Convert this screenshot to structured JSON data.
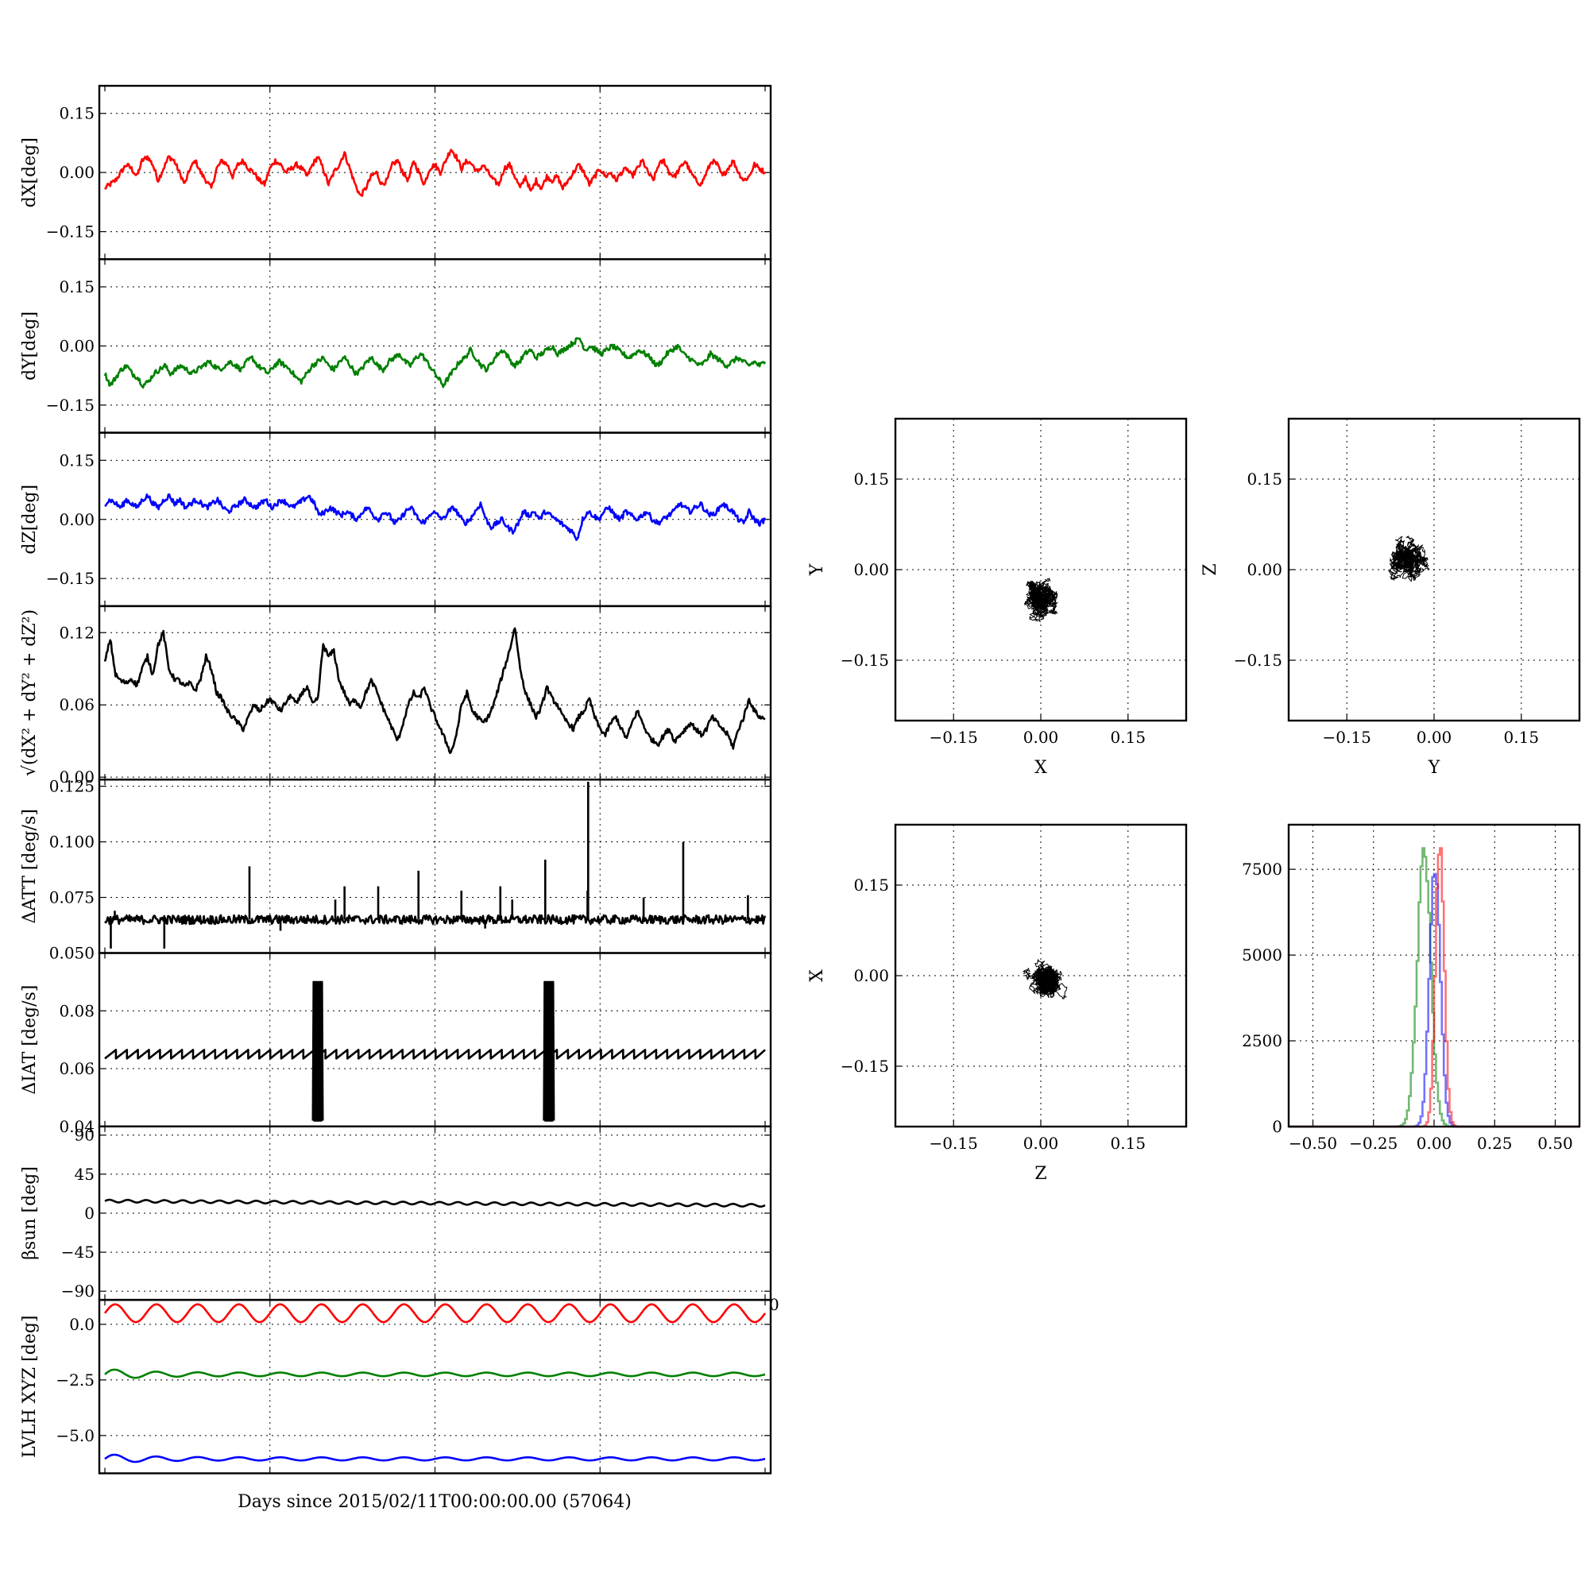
{
  "chart_data": [
    {
      "id": "dX",
      "type": "line",
      "ylabel": "dX[deg]",
      "ylim": [
        -0.22,
        0.22
      ],
      "yticks": [
        -0.15,
        0.0,
        0.15
      ],
      "ytick_labels": [
        "−0.15",
        "0.00",
        "0.15"
      ],
      "series": [
        {
          "color": "#ff0000",
          "y": [
            -0.04,
            -0.03,
            -0.02,
            0.0,
            0.02,
            0.01,
            -0.01,
            0.03,
            0.04,
            0.02,
            -0.02,
            0.01,
            0.04,
            0.03,
            0.0,
            -0.03,
            0.01,
            0.03,
            0.0,
            -0.02,
            -0.04,
            0.01,
            0.03,
            0.02,
            -0.01,
            0.02,
            0.03,
            0.01,
            0.0,
            -0.02,
            -0.03,
            0.01,
            0.03,
            0.02,
            0.0,
            0.01,
            0.02,
            0.01,
            -0.01,
            0.02,
            0.04,
            0.01,
            -0.03,
            0.0,
            0.02,
            0.05,
            0.01,
            -0.03,
            -0.06,
            -0.04,
            -0.01,
            0.0,
            -0.03,
            -0.02,
            0.02,
            0.03,
            0.0,
            -0.02,
            0.03,
            0.0,
            -0.03,
            0.01,
            0.02,
            0.0,
            0.03,
            0.06,
            0.04,
            0.01,
            0.03,
            0.02,
            0.0,
            0.02,
            0.0,
            -0.02,
            -0.03,
            0.01,
            0.02,
            -0.01,
            -0.04,
            -0.01,
            -0.05,
            -0.02,
            -0.04,
            -0.01,
            -0.02,
            -0.01,
            -0.04,
            -0.02,
            0.0,
            0.02,
            0.0,
            -0.03,
            -0.01,
            0.01,
            -0.01,
            0.0,
            -0.02,
            0.0,
            0.01,
            -0.01,
            0.01,
            0.03,
            0.0,
            -0.02,
            0.02,
            0.03,
            0.0,
            -0.01,
            0.01,
            0.03,
            0.0,
            -0.02,
            -0.03,
            0.0,
            0.03,
            0.02,
            -0.01,
            0.01,
            0.03,
            0.0,
            -0.02,
            -0.01,
            0.02,
            0.01,
            0.0
          ]
        }
      ]
    },
    {
      "id": "dY",
      "type": "line",
      "ylabel": "dY[deg]",
      "ylim": [
        -0.22,
        0.22
      ],
      "yticks": [
        -0.15,
        0.0,
        0.15
      ],
      "ytick_labels": [
        "−0.15",
        "0.00",
        "0.15"
      ],
      "series": [
        {
          "color": "#008000",
          "y": [
            -0.07,
            -0.1,
            -0.08,
            -0.06,
            -0.05,
            -0.07,
            -0.08,
            -0.1,
            -0.09,
            -0.07,
            -0.06,
            -0.05,
            -0.07,
            -0.06,
            -0.05,
            -0.06,
            -0.07,
            -0.06,
            -0.05,
            -0.04,
            -0.05,
            -0.06,
            -0.05,
            -0.04,
            -0.05,
            -0.06,
            -0.04,
            -0.03,
            -0.05,
            -0.06,
            -0.07,
            -0.05,
            -0.04,
            -0.05,
            -0.06,
            -0.08,
            -0.09,
            -0.07,
            -0.05,
            -0.04,
            -0.03,
            -0.05,
            -0.06,
            -0.04,
            -0.03,
            -0.05,
            -0.07,
            -0.06,
            -0.04,
            -0.03,
            -0.05,
            -0.06,
            -0.04,
            -0.03,
            -0.02,
            -0.04,
            -0.05,
            -0.03,
            -0.02,
            -0.04,
            -0.06,
            -0.08,
            -0.1,
            -0.08,
            -0.06,
            -0.04,
            -0.03,
            -0.01,
            -0.03,
            -0.05,
            -0.06,
            -0.04,
            -0.02,
            -0.01,
            -0.03,
            -0.05,
            -0.04,
            -0.02,
            -0.01,
            -0.03,
            -0.02,
            -0.01,
            0.0,
            -0.02,
            -0.01,
            0.0,
            0.01,
            0.02,
            -0.01,
            0.0,
            -0.01,
            -0.02,
            -0.01,
            0.0,
            -0.01,
            -0.02,
            -0.03,
            -0.02,
            -0.01,
            -0.02,
            -0.03,
            -0.05,
            -0.04,
            -0.02,
            -0.01,
            0.0,
            -0.02,
            -0.03,
            -0.04,
            -0.05,
            -0.04,
            -0.02,
            -0.03,
            -0.04,
            -0.05,
            -0.04,
            -0.03,
            -0.04,
            -0.05,
            -0.04,
            -0.05,
            -0.04
          ]
        }
      ]
    },
    {
      "id": "dZ",
      "type": "line",
      "ylabel": "dZ[deg]",
      "ylim": [
        -0.22,
        0.22
      ],
      "yticks": [
        -0.15,
        0.0,
        0.15
      ],
      "ytick_labels": [
        "−0.15",
        "0.00",
        "0.15"
      ],
      "series": [
        {
          "color": "#0000ff",
          "y": [
            0.04,
            0.05,
            0.04,
            0.03,
            0.05,
            0.04,
            0.03,
            0.05,
            0.06,
            0.04,
            0.03,
            0.05,
            0.06,
            0.04,
            0.05,
            0.03,
            0.04,
            0.05,
            0.04,
            0.03,
            0.04,
            0.05,
            0.03,
            0.02,
            0.03,
            0.04,
            0.05,
            0.04,
            0.03,
            0.04,
            0.05,
            0.03,
            0.04,
            0.05,
            0.04,
            0.03,
            0.04,
            0.05,
            0.06,
            0.04,
            0.01,
            0.02,
            0.03,
            0.02,
            0.01,
            0.02,
            0.01,
            0.0,
            0.02,
            0.03,
            0.01,
            0.0,
            0.02,
            0.01,
            -0.01,
            0.0,
            0.02,
            0.03,
            0.01,
            -0.01,
            0.0,
            0.02,
            0.01,
            0.0,
            0.02,
            0.03,
            0.01,
            -0.01,
            0.0,
            0.02,
            0.04,
            0.0,
            -0.02,
            -0.01,
            0.0,
            -0.02,
            -0.03,
            -0.01,
            0.02,
            0.01,
            0.02,
            0.0,
            0.02,
            0.01,
            0.0,
            -0.01,
            -0.02,
            -0.03,
            -0.05,
            0.0,
            0.02,
            0.01,
            0.0,
            0.02,
            0.03,
            0.01,
            0.0,
            0.02,
            0.01,
            0.0,
            0.01,
            0.02,
            0.0,
            -0.01,
            0.0,
            0.01,
            0.02,
            0.04,
            0.03,
            0.02,
            0.03,
            0.04,
            0.02,
            0.01,
            0.02,
            0.04,
            0.03,
            0.02,
            0.0,
            -0.01,
            0.02,
            0.0,
            -0.01,
            0.0
          ]
        }
      ]
    },
    {
      "id": "dR",
      "type": "line",
      "ylabel": "√(dX² + dY² + dZ²)",
      "ylim": [
        -0.002,
        0.142
      ],
      "yticks": [
        0.0,
        0.06,
        0.12
      ],
      "ytick_labels": [
        "0.00",
        "0.06",
        "0.12"
      ],
      "series": [
        {
          "color": "#000000",
          "y": [
            0.095,
            0.115,
            0.085,
            0.08,
            0.078,
            0.082,
            0.076,
            0.09,
            0.1,
            0.085,
            0.11,
            0.12,
            0.09,
            0.082,
            0.08,
            0.075,
            0.078,
            0.072,
            0.082,
            0.1,
            0.09,
            0.07,
            0.065,
            0.055,
            0.05,
            0.045,
            0.04,
            0.05,
            0.06,
            0.055,
            0.06,
            0.065,
            0.06,
            0.055,
            0.062,
            0.068,
            0.06,
            0.07,
            0.075,
            0.06,
            0.065,
            0.11,
            0.1,
            0.105,
            0.08,
            0.07,
            0.06,
            0.065,
            0.058,
            0.07,
            0.08,
            0.072,
            0.06,
            0.05,
            0.04,
            0.03,
            0.045,
            0.06,
            0.07,
            0.065,
            0.075,
            0.06,
            0.05,
            0.04,
            0.03,
            0.02,
            0.035,
            0.06,
            0.07,
            0.055,
            0.05,
            0.045,
            0.05,
            0.06,
            0.075,
            0.09,
            0.105,
            0.125,
            0.09,
            0.07,
            0.06,
            0.05,
            0.058,
            0.075,
            0.065,
            0.06,
            0.05,
            0.045,
            0.04,
            0.05,
            0.055,
            0.065,
            0.05,
            0.04,
            0.035,
            0.045,
            0.05,
            0.04,
            0.032,
            0.045,
            0.055,
            0.045,
            0.035,
            0.03,
            0.028,
            0.035,
            0.04,
            0.03,
            0.035,
            0.04,
            0.045,
            0.04,
            0.035,
            0.04,
            0.05,
            0.045,
            0.04,
            0.035,
            0.025,
            0.04,
            0.05,
            0.065,
            0.055,
            0.05,
            0.048
          ]
        }
      ]
    },
    {
      "id": "dATT",
      "type": "line",
      "ylabel": "ΔATT [deg/s]",
      "ylim": [
        0.05,
        0.128
      ],
      "yticks": [
        0.05,
        0.075,
        0.1,
        0.125
      ],
      "ytick_labels": [
        "0.050",
        "0.075",
        "0.100",
        "0.125"
      ],
      "baseline": 0.065,
      "spikes": [
        {
          "x": 0.009,
          "y": 0.052
        },
        {
          "x": 0.015,
          "y": 0.069
        },
        {
          "x": 0.09,
          "y": 0.052
        },
        {
          "x": 0.09,
          "y": 0.067
        },
        {
          "x": 0.219,
          "y": 0.089
        },
        {
          "x": 0.266,
          "y": 0.06
        },
        {
          "x": 0.349,
          "y": 0.074
        },
        {
          "x": 0.363,
          "y": 0.08
        },
        {
          "x": 0.414,
          "y": 0.08
        },
        {
          "x": 0.475,
          "y": 0.087
        },
        {
          "x": 0.54,
          "y": 0.078
        },
        {
          "x": 0.576,
          "y": 0.061
        },
        {
          "x": 0.599,
          "y": 0.08
        },
        {
          "x": 0.617,
          "y": 0.074
        },
        {
          "x": 0.667,
          "y": 0.092
        },
        {
          "x": 0.731,
          "y": 0.078
        },
        {
          "x": 0.732,
          "y": 0.127
        },
        {
          "x": 0.816,
          "y": 0.075
        },
        {
          "x": 0.876,
          "y": 0.1
        },
        {
          "x": 0.974,
          "y": 0.076
        }
      ],
      "series": [
        {
          "color": "#000000",
          "y": []
        }
      ]
    },
    {
      "id": "dIAT",
      "type": "line",
      "ylabel": "ΔIAT [deg/s]",
      "ylim": [
        0.04,
        0.1
      ],
      "yticks": [
        0.04,
        0.06,
        0.08
      ],
      "ytick_labels": [
        "0.04",
        "0.06",
        "0.08"
      ],
      "sawtooth": {
        "low": 0.0635,
        "high": 0.0665,
        "period_fraction": 0.0167
      },
      "bursts": [
        {
          "x_start": 0.315,
          "x_end": 0.33,
          "min": 0.042,
          "max": 0.09
        },
        {
          "x_start": 0.665,
          "x_end": 0.68,
          "min": 0.042,
          "max": 0.09
        }
      ],
      "series": [
        {
          "color": "#000000",
          "y": []
        }
      ]
    },
    {
      "id": "beta",
      "type": "line",
      "ylabel": "βsun [deg]",
      "ylim": [
        -100,
        100
      ],
      "yticks": [
        -90,
        -45,
        0,
        45,
        90
      ],
      "ytick_labels": [
        "−90",
        "−45",
        "0",
        "45",
        "90"
      ],
      "series": [
        {
          "color": "#000000",
          "mean_start": 14,
          "mean_end": 9,
          "amplitude": 1.5,
          "cycles": 36
        }
      ]
    },
    {
      "id": "lvlh",
      "type": "line",
      "ylabel": "LVLH XYZ [deg]",
      "ylim": [
        -6.7,
        1.1
      ],
      "yticks": [
        -5.0,
        -2.5,
        0.0
      ],
      "ytick_labels": [
        "−5.0",
        "−2.5",
        "0.0"
      ],
      "xlabel": "Days since 2015/02/11T00:00:00.00 (57064)",
      "x_overflow_tick": "0",
      "series": [
        {
          "color": "#ff0000",
          "mean": 0.5,
          "amplitude": 0.4,
          "cycles": 16
        },
        {
          "color": "#008000",
          "mean": -2.25,
          "amplitude": 0.08,
          "cycles": 16
        },
        {
          "color": "#0000ff",
          "mean": -6.05,
          "amplitude": 0.07,
          "cycles": 16
        }
      ]
    },
    {
      "id": "scatterXY",
      "type": "scatter",
      "xlabel": "X",
      "ylabel": "Y",
      "xlim": [
        -0.25,
        0.25
      ],
      "ylim": [
        -0.25,
        0.25
      ],
      "xticks": [
        -0.15,
        0.0,
        0.15
      ],
      "xtick_labels": [
        "−0.15",
        "0.00",
        "0.15"
      ],
      "yticks": [
        -0.15,
        0.0,
        0.15
      ],
      "ytick_labels": [
        "−0.15",
        "0.00",
        "0.15"
      ],
      "cluster": {
        "cx": 0.0,
        "cy": -0.045,
        "spread": 0.035
      }
    },
    {
      "id": "scatterYZ",
      "type": "scatter",
      "xlabel": "Y",
      "ylabel": "Z",
      "xlim": [
        -0.25,
        0.25
      ],
      "ylim": [
        -0.25,
        0.25
      ],
      "xticks": [
        -0.15,
        0.0,
        0.15
      ],
      "xtick_labels": [
        "−0.15",
        "0.00",
        "0.15"
      ],
      "yticks": [
        -0.15,
        0.0,
        0.15
      ],
      "ytick_labels": [
        "−0.15",
        "0.00",
        "0.15"
      ],
      "cluster": {
        "cx": -0.045,
        "cy": 0.02,
        "spread": 0.03
      }
    },
    {
      "id": "scatterZX",
      "type": "scatter",
      "xlabel": "Z",
      "ylabel": "X",
      "xlim": [
        -0.25,
        0.25
      ],
      "ylim": [
        -0.25,
        0.25
      ],
      "xticks": [
        -0.15,
        0.0,
        0.15
      ],
      "xtick_labels": [
        "−0.15",
        "0.00",
        "0.15"
      ],
      "yticks": [
        -0.15,
        0.0,
        0.15
      ],
      "ytick_labels": [
        "−0.15",
        "0.00",
        "0.15"
      ],
      "cluster": {
        "cx": 0.01,
        "cy": -0.005,
        "spread": 0.032
      }
    },
    {
      "id": "histogram",
      "type": "bar",
      "ylim": [
        0,
        8800
      ],
      "xlim": [
        -0.6,
        0.6
      ],
      "xticks": [
        -0.5,
        -0.25,
        0.0,
        0.25,
        0.5
      ],
      "xtick_labels": [
        "−0.50",
        "−0.25",
        "0.00",
        "0.25",
        "0.50"
      ],
      "yticks": [
        0,
        2500,
        5000,
        7500
      ],
      "ytick_labels": [
        "0",
        "2500",
        "5000",
        "7500"
      ],
      "series": [
        {
          "color": "#008000",
          "center": -0.045,
          "sigma": 0.028,
          "peak": 8300
        },
        {
          "color": "#0000ff",
          "center": 0.0,
          "sigma": 0.022,
          "peak": 8000
        },
        {
          "color": "#ff0000",
          "center": 0.02,
          "sigma": 0.018,
          "peak": 8700
        }
      ]
    }
  ]
}
